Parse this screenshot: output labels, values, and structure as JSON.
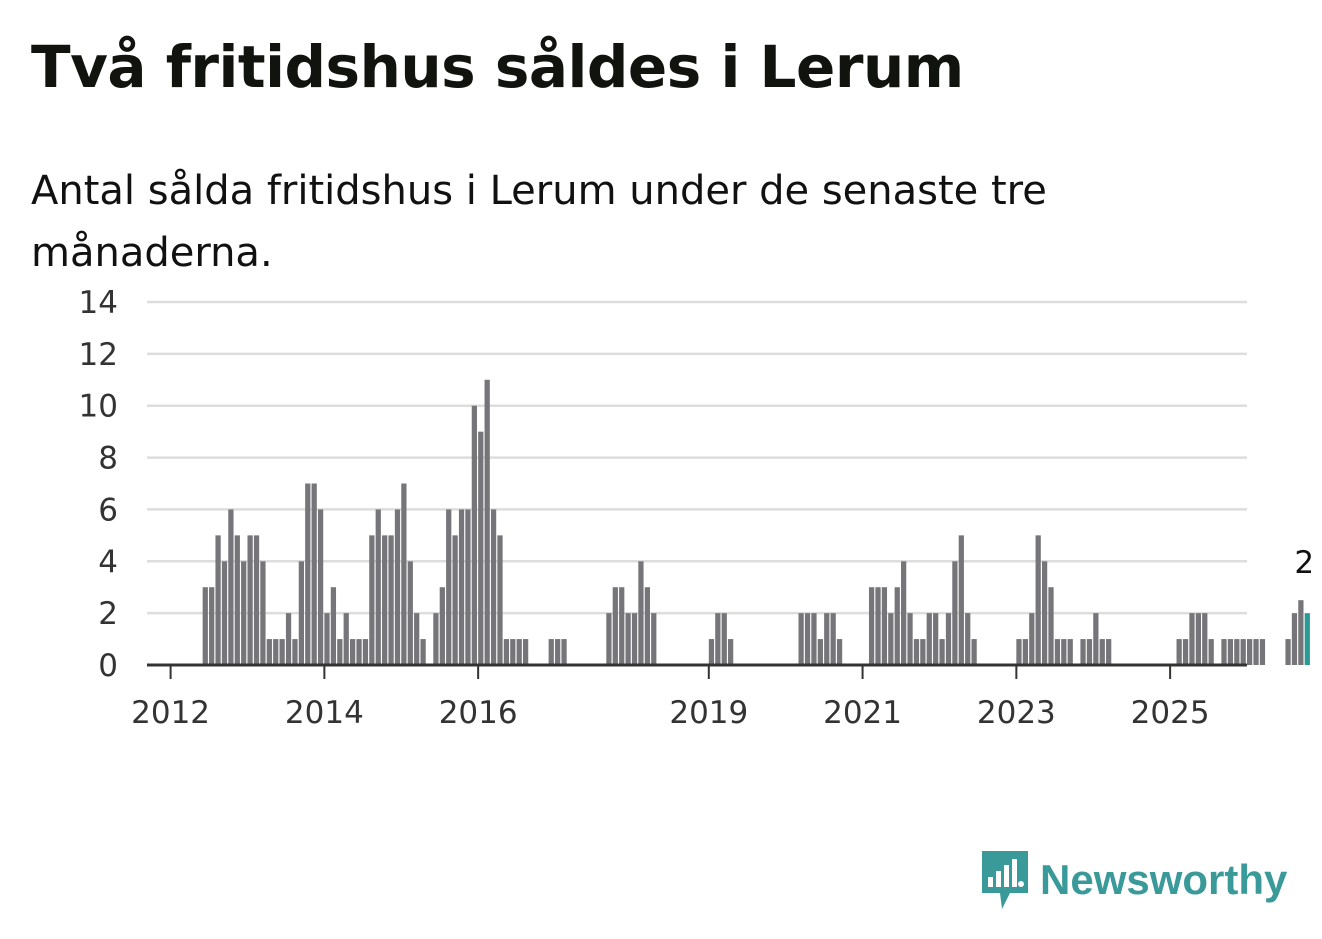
{
  "title": "Två fritidshus såldes i Lerum",
  "subtitle": "Antal sålda fritidshus i Lerum under de senaste tre månaderna.",
  "brand": {
    "name": "Newsworthy",
    "color": "#3a9a9a"
  },
  "colors": {
    "bar": "#76767a",
    "highlight": "#2a9a94",
    "grid": "#dddddd",
    "axis": "#333333"
  },
  "chart_data": {
    "type": "bar",
    "title": "Två fritidshus såldes i Lerum",
    "xlabel": "",
    "ylabel": "",
    "ylim": [
      0,
      14
    ],
    "yticks": [
      0,
      2,
      4,
      6,
      8,
      10,
      12,
      14
    ],
    "x_start_year": 2011.667,
    "x_end_year": 2026.0,
    "xticks": [
      {
        "label": "2012",
        "year": 2012
      },
      {
        "label": "2014",
        "year": 2014
      },
      {
        "label": "2016",
        "year": 2016
      },
      {
        "label": "2019",
        "year": 2019
      },
      {
        "label": "2021",
        "year": 2021
      },
      {
        "label": "2023",
        "year": 2023
      },
      {
        "label": "2025",
        "year": 2025
      }
    ],
    "bar_start_month": "2011-09",
    "values": [
      0,
      0,
      0,
      0,
      0,
      0,
      0,
      0,
      0,
      3,
      3,
      5,
      4,
      6,
      5,
      4,
      5,
      5,
      4,
      1,
      1,
      1,
      2,
      1,
      4,
      7,
      7,
      6,
      2,
      3,
      1,
      2,
      1,
      1,
      1,
      5,
      6,
      5,
      5,
      6,
      7,
      4,
      2,
      1,
      0,
      2,
      3,
      6,
      5,
      6,
      6,
      10,
      9,
      11,
      6,
      5,
      1,
      1,
      1,
      1,
      0,
      0,
      0,
      1,
      1,
      1,
      0,
      0,
      0,
      0,
      0,
      0,
      2,
      3,
      3,
      2,
      2,
      4,
      3,
      2,
      0,
      0,
      0,
      0,
      0,
      0,
      0,
      0,
      1,
      2,
      2,
      1,
      0,
      0,
      0,
      0,
      0,
      0,
      0,
      0,
      0,
      0,
      2,
      2,
      2,
      1,
      2,
      2,
      1,
      0,
      0,
      0,
      0,
      3,
      3,
      3,
      2,
      3,
      4,
      2,
      1,
      1,
      2,
      2,
      1,
      2,
      4,
      5,
      2,
      1,
      0,
      0,
      0,
      0,
      0,
      0,
      1,
      1,
      2,
      5,
      4,
      3,
      1,
      1,
      1,
      0,
      1,
      1,
      2,
      1,
      1,
      0,
      0,
      0,
      0,
      0,
      0,
      0,
      0,
      0,
      0,
      1,
      1,
      2,
      2,
      2,
      1,
      0,
      1,
      1,
      1,
      1,
      1,
      1,
      1,
      0,
      0,
      0,
      1,
      2,
      2.5,
      2
    ],
    "highlight_last": true,
    "annotation": {
      "label": "2",
      "target": "last"
    }
  }
}
